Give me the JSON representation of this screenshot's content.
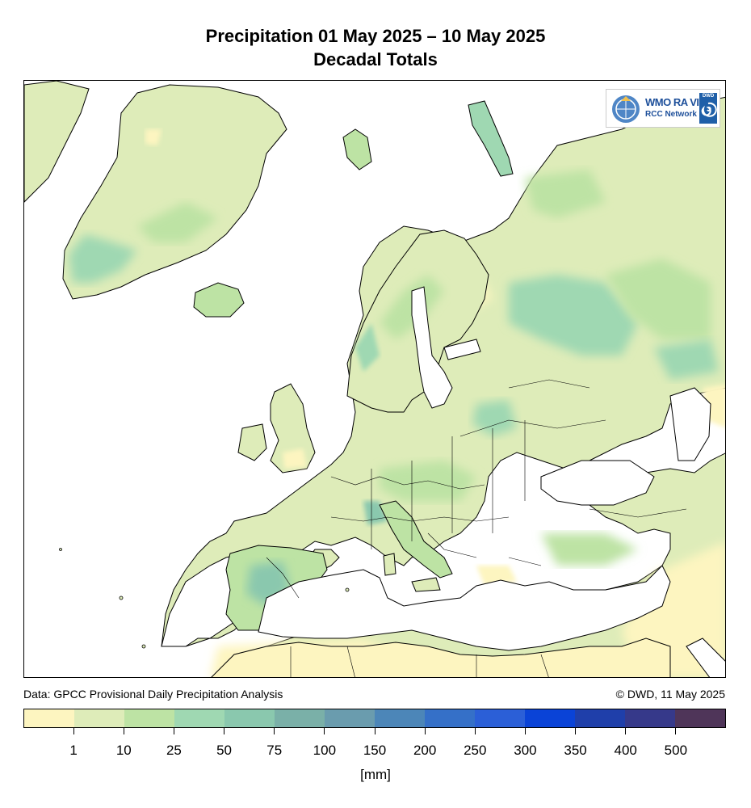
{
  "title": {
    "line1": "Precipitation 01 May 2025 – 10 May 2025",
    "line2": "Decadal Totals"
  },
  "logo": {
    "line1": "WMO RA VI",
    "line2": "RCC Network",
    "badge": "DWD"
  },
  "source": {
    "left": "Data: GPCC Provisional Daily Precipitation Analysis",
    "right": "© DWD, 11 May 2025"
  },
  "legend": {
    "unit": "[mm]",
    "colors": [
      "#fdf5c0",
      "#deecb9",
      "#bde3a4",
      "#9fd8b2",
      "#8ac8ae",
      "#7ab0a8",
      "#6a9cae",
      "#4c86b8",
      "#3570c8",
      "#2b5fd7",
      "#0a43d7",
      "#1f3faa",
      "#36398a",
      "#4f3559"
    ],
    "ticks": [
      "1",
      "10",
      "25",
      "50",
      "75",
      "100",
      "150",
      "200",
      "250",
      "300",
      "350",
      "400",
      "500"
    ]
  },
  "map_colors": {
    "ocean": "#ffffff",
    "land_dry": "#fdf5c0",
    "land_light": "#deecb9",
    "land_mid": "#bde3a4",
    "land_wet": "#9fd8b2",
    "land_wetter": "#8ac8ae",
    "coast": "#000000"
  }
}
